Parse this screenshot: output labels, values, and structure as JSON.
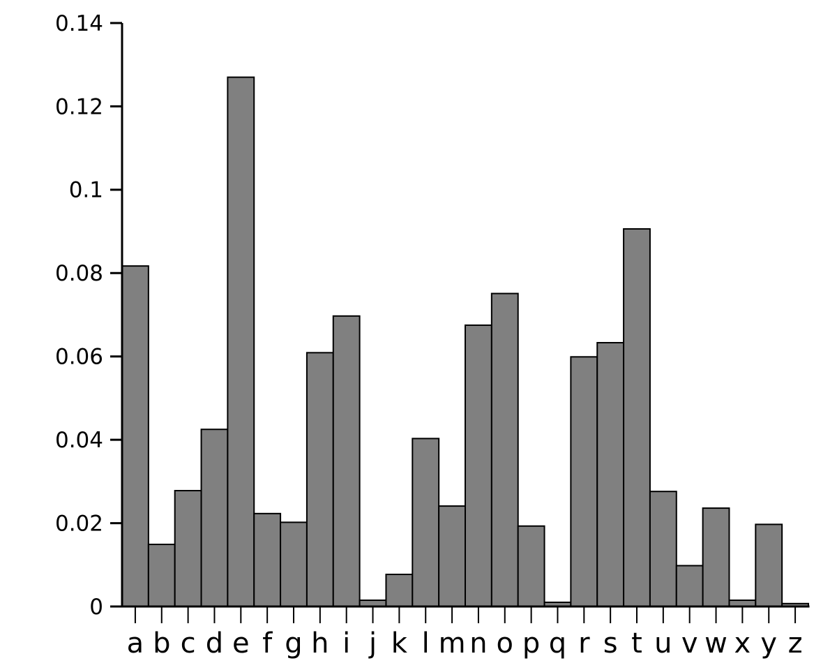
{
  "chart_data": {
    "type": "bar",
    "title": "",
    "xlabel": "",
    "ylabel": "",
    "categories": [
      "a",
      "b",
      "c",
      "d",
      "e",
      "f",
      "g",
      "h",
      "i",
      "j",
      "k",
      "l",
      "m",
      "n",
      "o",
      "p",
      "q",
      "r",
      "s",
      "t",
      "u",
      "v",
      "w",
      "x",
      "y",
      "z"
    ],
    "values": [
      0.0817,
      0.0149,
      0.0278,
      0.0425,
      0.127,
      0.0223,
      0.0202,
      0.0609,
      0.0697,
      0.0015,
      0.0077,
      0.0403,
      0.0241,
      0.0675,
      0.0751,
      0.0193,
      0.001,
      0.0599,
      0.0633,
      0.0906,
      0.0276,
      0.0098,
      0.0236,
      0.0015,
      0.0197,
      0.0007
    ],
    "ylim": [
      0,
      0.14
    ],
    "ytick_values": [
      0,
      0.02,
      0.04,
      0.06,
      0.08,
      0.1,
      0.12,
      0.14
    ],
    "ytick_labels": [
      "0",
      "0.02",
      "0.04",
      "0.06",
      "0.08",
      "0.1",
      "0.12",
      "0.14"
    ],
    "grid": "off",
    "legend": "none",
    "colors": {
      "bar_fill": "#808080",
      "bar_stroke": "#000000",
      "axis": "#000000",
      "text": "#000000",
      "background": "#ffffff"
    }
  }
}
